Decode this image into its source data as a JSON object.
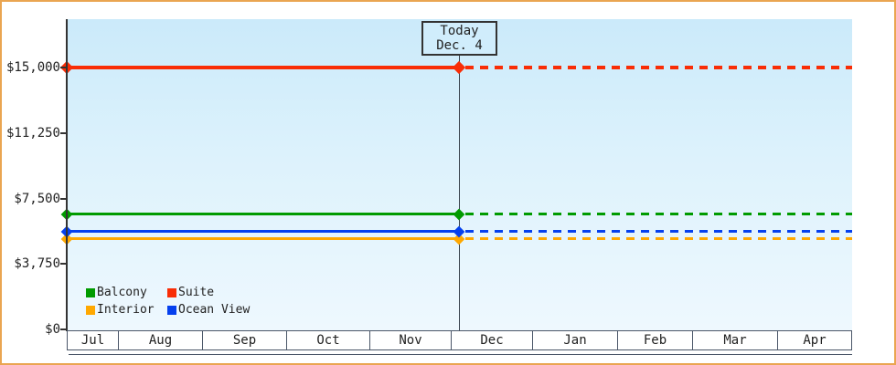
{
  "frame": {
    "border_color": "#eaa551",
    "background": "#ffffff"
  },
  "chart_data": {
    "type": "line",
    "today": {
      "label": "Today",
      "date": "Dec. 4"
    },
    "x_axis": {
      "months": [
        "Jul",
        "Aug",
        "Sep",
        "Oct",
        "Nov",
        "Dec",
        "Jan",
        "Feb",
        "Mar",
        "Apr"
      ]
    },
    "y_axis": {
      "ticks": [
        {
          "label": "$15,000",
          "value": 15000
        },
        {
          "label": "$11,250",
          "value": 11250
        },
        {
          "label": "$7,500",
          "value": 7500
        },
        {
          "label": "$3,750",
          "value": 3750
        },
        {
          "label": "$0",
          "value": 0
        }
      ]
    },
    "ylim": [
      0,
      17800
    ],
    "grid": false,
    "legend_position": "bottom-left",
    "series": [
      {
        "name": "Balcony",
        "color": "#009b00",
        "price": 6600
      },
      {
        "name": "Suite",
        "color": "#f92d06",
        "price": 15000
      },
      {
        "name": "Interior",
        "color": "#ffa800",
        "price": 5200
      },
      {
        "name": "Ocean View",
        "color": "#0540ee",
        "price": 5600
      }
    ],
    "line_style": {
      "past": "solid",
      "future": "dashed"
    },
    "plot_gradient": {
      "top": "#cbeafa",
      "bottom": "#eef8fe"
    }
  }
}
